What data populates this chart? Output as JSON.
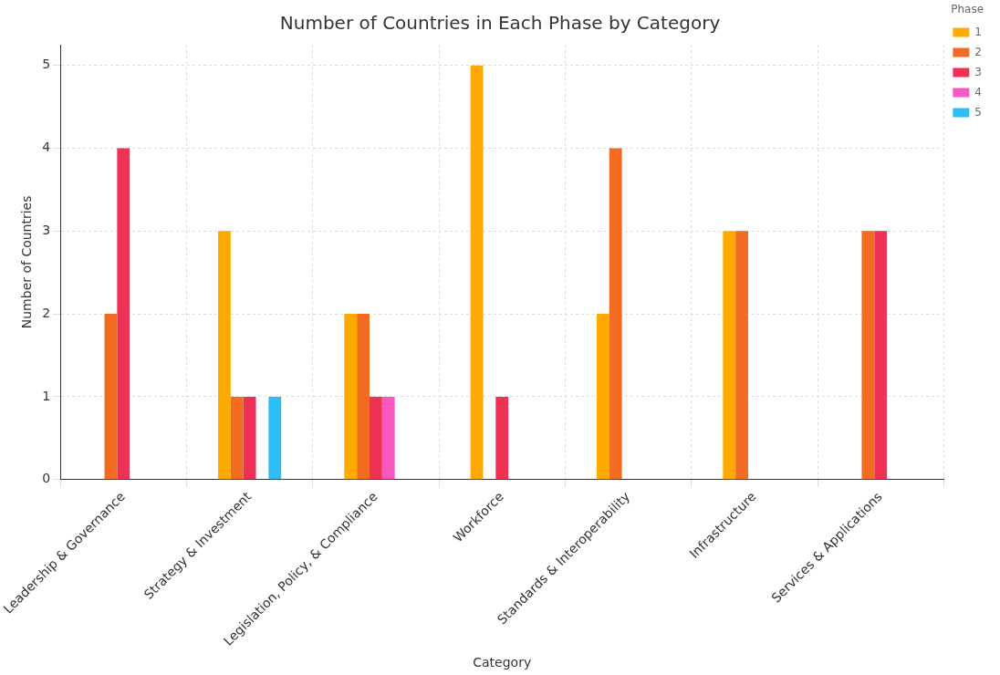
{
  "chart_data": {
    "type": "bar",
    "title": "Number of Countries in Each Phase by Category",
    "xlabel": "Category",
    "ylabel": "Number of Countries",
    "legend_title": "Phase",
    "categories": [
      "Leadership & Governance",
      "Strategy & Investment",
      "Legislation, Policy, & Compliance",
      "Workforce",
      "Standards & Interoperability",
      "Infrastructure",
      "Services & Applications"
    ],
    "series": [
      {
        "name": "1",
        "color": "#ffaa00",
        "values": [
          0,
          3,
          2,
          5,
          2,
          3,
          0
        ]
      },
      {
        "name": "2",
        "color": "#f26b21",
        "values": [
          2,
          1,
          2,
          0,
          4,
          3,
          3
        ]
      },
      {
        "name": "3",
        "color": "#ee3155",
        "values": [
          4,
          1,
          1,
          1,
          0,
          0,
          3
        ]
      },
      {
        "name": "4",
        "color": "#f857c4",
        "values": [
          0,
          0,
          1,
          0,
          0,
          0,
          0
        ]
      },
      {
        "name": "5",
        "color": "#2ebcf5",
        "values": [
          0,
          1,
          0,
          0,
          0,
          0,
          0
        ]
      }
    ],
    "ylim": [
      0,
      5.25
    ],
    "yticks": [
      0,
      1,
      2,
      3,
      4,
      5
    ],
    "grid": true,
    "legend": "top right"
  }
}
